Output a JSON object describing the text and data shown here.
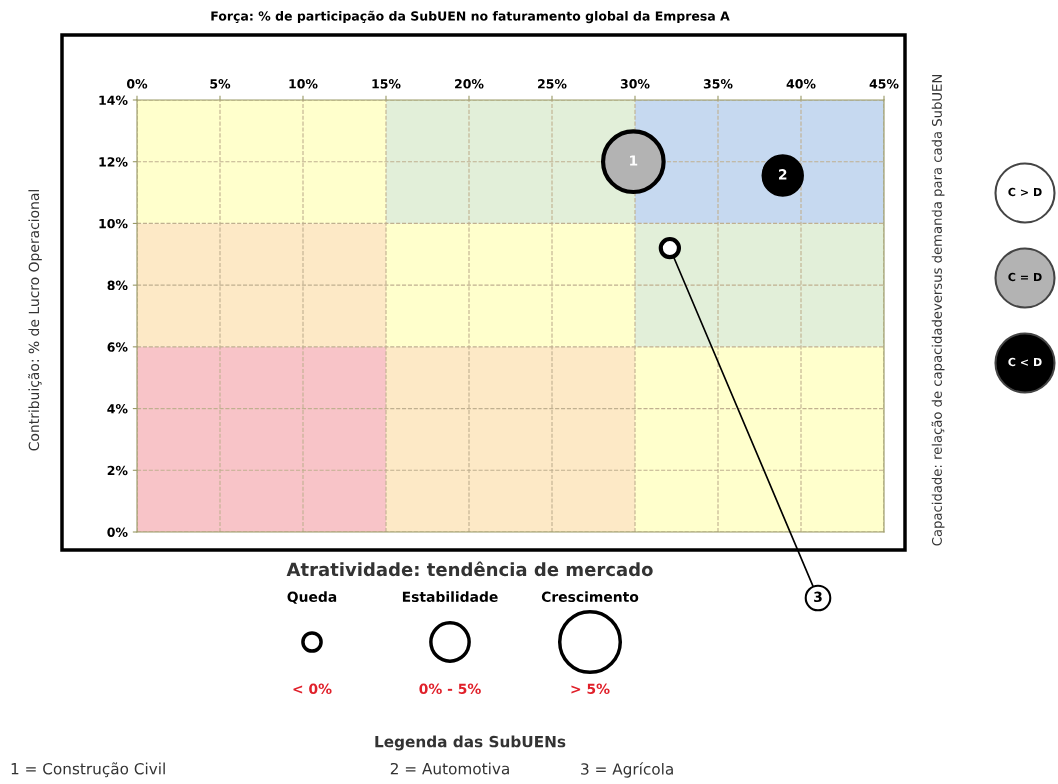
{
  "chart_data": {
    "type": "bubble",
    "xlabel": "Força: % de participação da SubUEN no faturamento global da Empresa A",
    "ylabel": "Contribuição: % de Lucro Operacional",
    "xlim": [
      0,
      45
    ],
    "ylim": [
      0,
      14
    ],
    "xticks": [
      {
        "value": 0,
        "label": "0%"
      },
      {
        "value": 5,
        "label": "5%"
      },
      {
        "value": 10,
        "label": "10%"
      },
      {
        "value": 15,
        "label": "15%"
      },
      {
        "value": 20,
        "label": "20%"
      },
      {
        "value": 25,
        "label": "25%"
      },
      {
        "value": 30,
        "label": "30%"
      },
      {
        "value": 35,
        "label": "35%"
      },
      {
        "value": 40,
        "label": "40%"
      },
      {
        "value": 45,
        "label": "45%"
      }
    ],
    "yticks": [
      {
        "value": 0,
        "label": "0%"
      },
      {
        "value": 2,
        "label": "2%"
      },
      {
        "value": 4,
        "label": "4%"
      },
      {
        "value": 6,
        "label": "6%"
      },
      {
        "value": 8,
        "label": "8%"
      },
      {
        "value": 10,
        "label": "10%"
      },
      {
        "value": 12,
        "label": "12%"
      },
      {
        "value": 14,
        "label": "14%"
      }
    ],
    "grid": true,
    "series": [
      {
        "color": "#ffffff",
        "x": [
          32.1
        ],
        "values": [
          9.2
        ],
        "sizes": [
          0.09
        ]
      },
      {
        "color": "#b3b3b3",
        "x": [
          29.9
        ],
        "values": [
          12.0
        ],
        "sizes": [
          1
        ]
      },
      {
        "color": "#000000",
        "x": [
          38.9
        ],
        "values": [
          11.55
        ],
        "sizes": [
          0.4
        ]
      }
    ],
    "annotations": [
      {
        "text": "1",
        "x": 29.9,
        "y": 12.0
      },
      {
        "text": "2",
        "x": 38.9,
        "y": 11.55
      },
      {
        "text": "3",
        "x": 32.1,
        "y": 9.2
      },
      "Atratividade: tendência de mercado",
      "Queda",
      "Estabilidade",
      "Crescimento",
      "< 0%",
      "0% - 5%",
      "> 5%",
      "Legenda das SubUENs",
      "1 = Construção Civil",
      "2 = Automotiva",
      "3 = Agrícola",
      "Capacidade: relação de capacidadeversus demanda para cada SubUEN",
      "C > D",
      "C = D",
      "C < D"
    ]
  }
}
